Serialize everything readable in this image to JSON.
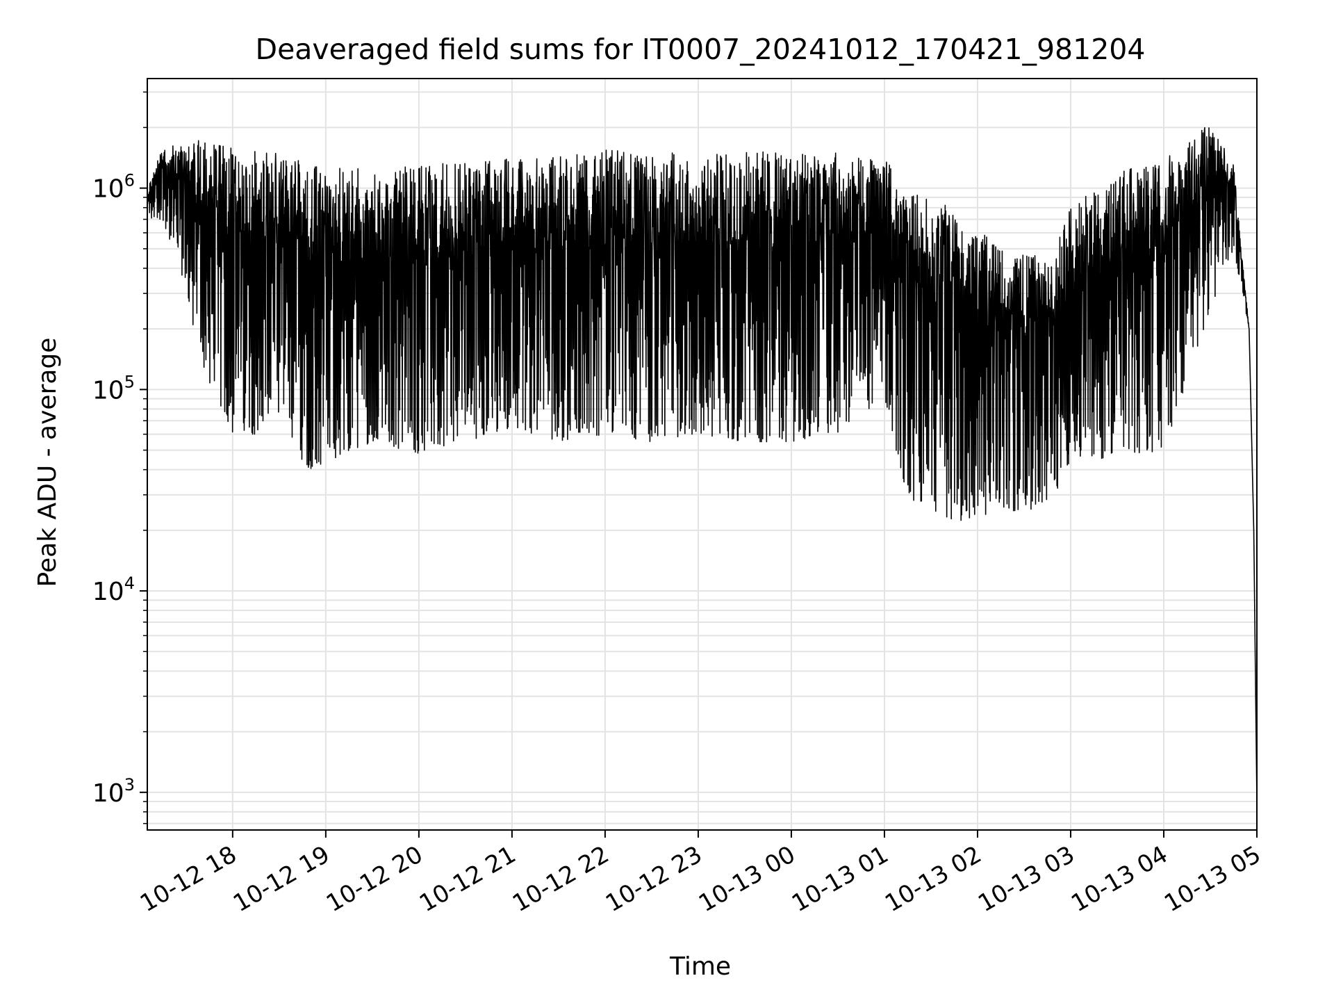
{
  "chart_data": {
    "type": "line",
    "title": "Deaveraged field sums for IT0007_20241012_170421_981204",
    "xlabel": "Time",
    "ylabel": "Peak ADU - average",
    "yscale": "log",
    "ylim": [
      650,
      3500000
    ],
    "xlim": [
      "2024-10-12 17:05",
      "2024-10-13 05:00"
    ],
    "x_ticks": [
      {
        "value": "2024-10-12 18:00",
        "label": "10-12 18"
      },
      {
        "value": "2024-10-12 19:00",
        "label": "10-12 19"
      },
      {
        "value": "2024-10-12 20:00",
        "label": "10-12 20"
      },
      {
        "value": "2024-10-12 21:00",
        "label": "10-12 21"
      },
      {
        "value": "2024-10-12 22:00",
        "label": "10-12 22"
      },
      {
        "value": "2024-10-12 23:00",
        "label": "10-12 23"
      },
      {
        "value": "2024-10-13 00:00",
        "label": "10-13 00"
      },
      {
        "value": "2024-10-13 01:00",
        "label": "10-13 01"
      },
      {
        "value": "2024-10-13 02:00",
        "label": "10-13 02"
      },
      {
        "value": "2024-10-13 03:00",
        "label": "10-13 03"
      },
      {
        "value": "2024-10-13 04:00",
        "label": "10-13 04"
      },
      {
        "value": "2024-10-13 05:00",
        "label": "10-13 05"
      }
    ],
    "y_ticks": [
      {
        "value": 1000,
        "base": "10",
        "exp": "3"
      },
      {
        "value": 10000,
        "base": "10",
        "exp": "4"
      },
      {
        "value": 100000,
        "base": "10",
        "exp": "5"
      },
      {
        "value": 1000000,
        "base": "10",
        "exp": "6"
      }
    ],
    "grid": true,
    "line_color": "#000000",
    "grid_color": "#e3e3e3",
    "series": [
      {
        "values_described_as_envelope": true,
        "envelope": [
          {
            "time": "2024-10-12 17:05",
            "upper": 1000000,
            "lower": 700000
          },
          {
            "time": "2024-10-12 17:15",
            "upper": 1650000,
            "lower": 700000
          },
          {
            "time": "2024-10-12 17:30",
            "upper": 1600000,
            "lower": 300000
          },
          {
            "time": "2024-10-12 17:40",
            "upper": 1800000,
            "lower": 130000
          },
          {
            "time": "2024-10-12 18:00",
            "upper": 1600000,
            "lower": 60000
          },
          {
            "time": "2024-10-12 18:30",
            "upper": 1500000,
            "lower": 60000
          },
          {
            "time": "2024-10-12 18:50",
            "upper": 1300000,
            "lower": 40000
          },
          {
            "time": "2024-10-12 19:30",
            "upper": 1250000,
            "lower": 55000
          },
          {
            "time": "2024-10-12 20:00",
            "upper": 1300000,
            "lower": 48000
          },
          {
            "time": "2024-10-12 20:30",
            "upper": 1350000,
            "lower": 55000
          },
          {
            "time": "2024-10-12 21:00",
            "upper": 1400000,
            "lower": 65000
          },
          {
            "time": "2024-10-12 21:30",
            "upper": 1450000,
            "lower": 55000
          },
          {
            "time": "2024-10-12 22:00",
            "upper": 1550000,
            "lower": 60000
          },
          {
            "time": "2024-10-12 22:30",
            "upper": 1500000,
            "lower": 55000
          },
          {
            "time": "2024-10-12 23:00",
            "upper": 1500000,
            "lower": 60000
          },
          {
            "time": "2024-10-12 23:30",
            "upper": 1500000,
            "lower": 55000
          },
          {
            "time": "2024-10-13 00:00",
            "upper": 1550000,
            "lower": 55000
          },
          {
            "time": "2024-10-13 00:30",
            "upper": 1500000,
            "lower": 60000
          },
          {
            "time": "2024-10-13 01:00",
            "upper": 1400000,
            "lower": 90000
          },
          {
            "time": "2024-10-13 01:15",
            "upper": 1000000,
            "lower": 28000
          },
          {
            "time": "2024-10-13 01:45",
            "upper": 800000,
            "lower": 22000
          },
          {
            "time": "2024-10-13 02:15",
            "upper": 500000,
            "lower": 25000
          },
          {
            "time": "2024-10-13 02:45",
            "upper": 450000,
            "lower": 25000
          },
          {
            "time": "2024-10-13 03:00",
            "upper": 800000,
            "lower": 45000
          },
          {
            "time": "2024-10-13 03:30",
            "upper": 1200000,
            "lower": 45000
          },
          {
            "time": "2024-10-13 04:00",
            "upper": 1400000,
            "lower": 50000
          },
          {
            "time": "2024-10-13 04:30",
            "upper": 2100000,
            "lower": 250000
          },
          {
            "time": "2024-10-13 04:45",
            "upper": 1300000,
            "lower": 500000
          },
          {
            "time": "2024-10-13 04:55",
            "upper": 200000,
            "lower": 200000
          },
          {
            "time": "2024-10-13 05:00",
            "upper": 900,
            "lower": 900
          }
        ]
      }
    ]
  }
}
